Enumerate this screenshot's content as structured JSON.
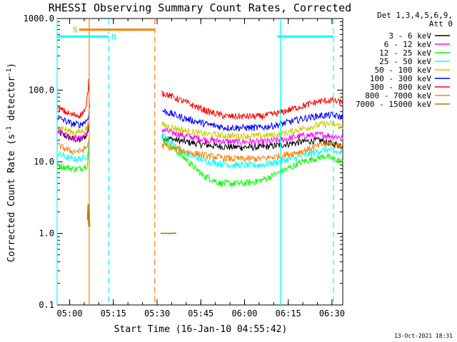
{
  "chart_data": {
    "type": "line",
    "title": "RHESSI Observing Summary Count Rates, Corrected",
    "xlabel": "Start Time (16-Jan-10 04:55:42)",
    "ylabel_parts": [
      "Corrected Count Rate (s",
      "-1",
      " detector",
      "-1",
      ")"
    ],
    "yscale": "log",
    "ylim": [
      0.1,
      1000
    ],
    "xlim_minutes_from_start": [
      0,
      98
    ],
    "y_ticks": [
      "0.1",
      "1.0",
      "10.0",
      "100.0",
      "1000.0"
    ],
    "x_ticks": [
      {
        "label": "05:00",
        "min": 4.3
      },
      {
        "label": "05:15",
        "min": 19.3
      },
      {
        "label": "05:30",
        "min": 34.3
      },
      {
        "label": "05:45",
        "min": 49.3
      },
      {
        "label": "06:00",
        "min": 64.3
      },
      {
        "label": "06:15",
        "min": 79.3
      },
      {
        "label": "06:30",
        "min": 94.3
      }
    ],
    "legend_header": [
      "Det 1,3,4,5,6,9,",
      "Att 0"
    ],
    "legend_position": "outside-right",
    "series": [
      {
        "name": "3 - 6 keV",
        "color": "#000000",
        "pre": [
          [
            0,
            26
          ],
          [
            5,
            21
          ],
          [
            8,
            20
          ],
          [
            10.3,
            24
          ],
          [
            11,
            34
          ]
        ],
        "post": [
          [
            36,
            22
          ],
          [
            44,
            19
          ],
          [
            52,
            17
          ],
          [
            60,
            16
          ],
          [
            70,
            16
          ],
          [
            76,
            17
          ],
          [
            84,
            19
          ],
          [
            90,
            20
          ],
          [
            94,
            18
          ],
          [
            98,
            17
          ]
        ]
      },
      {
        "name": "6 - 12 keV",
        "color": "#ff00ff",
        "pre": [
          [
            0,
            28
          ],
          [
            5,
            22
          ],
          [
            8,
            21
          ],
          [
            10.3,
            26
          ],
          [
            11,
            36
          ]
        ],
        "post": [
          [
            36,
            28
          ],
          [
            44,
            23
          ],
          [
            52,
            20
          ],
          [
            60,
            19
          ],
          [
            70,
            19
          ],
          [
            76,
            20
          ],
          [
            84,
            23
          ],
          [
            90,
            24
          ],
          [
            94,
            23
          ],
          [
            98,
            22
          ]
        ]
      },
      {
        "name": "12 - 25 keV",
        "color": "#00ff00",
        "pre": [
          [
            0,
            9
          ],
          [
            5,
            8
          ],
          [
            8,
            8
          ],
          [
            10.3,
            9
          ],
          [
            11,
            16
          ]
        ],
        "post": [
          [
            36,
            21
          ],
          [
            44,
            11
          ],
          [
            50,
            6.5
          ],
          [
            56,
            5
          ],
          [
            64,
            5
          ],
          [
            70,
            5.5
          ],
          [
            76,
            7
          ],
          [
            84,
            10
          ],
          [
            92,
            12
          ],
          [
            98,
            10
          ]
        ]
      },
      {
        "name": "25 - 50 keV",
        "color": "#00ffff",
        "pre": [
          [
            0,
            13
          ],
          [
            5,
            11
          ],
          [
            8,
            11
          ],
          [
            10.3,
            12
          ],
          [
            11,
            20
          ]
        ],
        "post": [
          [
            36,
            24
          ],
          [
            44,
            13
          ],
          [
            52,
            10
          ],
          [
            60,
            9
          ],
          [
            70,
            9
          ],
          [
            76,
            10
          ],
          [
            84,
            12
          ],
          [
            92,
            15
          ],
          [
            98,
            13
          ]
        ]
      },
      {
        "name": "50 - 100 keV",
        "color": "#cccc00",
        "pre": [
          [
            0,
            32
          ],
          [
            5,
            26
          ],
          [
            8,
            26
          ],
          [
            10.3,
            30
          ],
          [
            11,
            42
          ]
        ],
        "post": [
          [
            36,
            33
          ],
          [
            44,
            27
          ],
          [
            52,
            24
          ],
          [
            60,
            23
          ],
          [
            70,
            23
          ],
          [
            76,
            24
          ],
          [
            84,
            29
          ],
          [
            90,
            33
          ],
          [
            94,
            34
          ],
          [
            98,
            31
          ]
        ]
      },
      {
        "name": "100 - 300 keV",
        "color": "#0000ff",
        "pre": [
          [
            0,
            42
          ],
          [
            5,
            34
          ],
          [
            8,
            33
          ],
          [
            10.3,
            38
          ],
          [
            11,
            50
          ]
        ],
        "post": [
          [
            36,
            52
          ],
          [
            44,
            40
          ],
          [
            52,
            33
          ],
          [
            58,
            30
          ],
          [
            70,
            30
          ],
          [
            76,
            33
          ],
          [
            84,
            40
          ],
          [
            90,
            44
          ],
          [
            94,
            45
          ],
          [
            98,
            42
          ]
        ]
      },
      {
        "name": "300 - 800 keV",
        "color": "#ff0000",
        "pre": [
          [
            0,
            57
          ],
          [
            5,
            45
          ],
          [
            8,
            45
          ],
          [
            10,
            55
          ],
          [
            10.8,
            130
          ],
          [
            11.2,
            60
          ]
        ],
        "post": [
          [
            36,
            93
          ],
          [
            44,
            68
          ],
          [
            52,
            50
          ],
          [
            58,
            43
          ],
          [
            70,
            43
          ],
          [
            76,
            48
          ],
          [
            84,
            60
          ],
          [
            90,
            70
          ],
          [
            94,
            72
          ],
          [
            98,
            67
          ]
        ]
      },
      {
        "name": "800 - 7000 keV",
        "color": "#ff8000",
        "pre": [
          [
            0,
            17
          ],
          [
            5,
            14
          ],
          [
            8,
            14
          ],
          [
            10.3,
            16
          ],
          [
            11,
            22
          ]
        ],
        "post": [
          [
            36,
            17
          ],
          [
            44,
            14
          ],
          [
            52,
            12
          ],
          [
            60,
            11
          ],
          [
            70,
            11
          ],
          [
            76,
            12
          ],
          [
            84,
            14
          ],
          [
            90,
            17
          ],
          [
            94,
            18
          ],
          [
            98,
            16
          ]
        ]
      },
      {
        "name": "7000 - 15000 keV",
        "color": "#a08000",
        "pre": [
          [
            10.6,
            1.6
          ],
          [
            10.8,
            2.5
          ],
          [
            11,
            1.3
          ]
        ],
        "post": [
          [
            35.5,
            1.0
          ],
          [
            41,
            1.0
          ]
        ]
      }
    ],
    "annotations": {
      "s_label": "S",
      "n_label": "N",
      "s_bar": {
        "from_min": 7.5,
        "to_min": 33.5,
        "y": 700
      },
      "n_bars": [
        {
          "from_min": 0,
          "to_min": 17.7,
          "y": 560
        },
        {
          "from_min": 75.5,
          "to_min": 94.8,
          "y": 560
        }
      ],
      "vlines": [
        {
          "min": 0,
          "color": "#00ffff",
          "style": "solid"
        },
        {
          "min": 11,
          "color": "#ff8000",
          "style": "solid"
        },
        {
          "min": 17.7,
          "color": "#00ffff",
          "style": "dashed"
        },
        {
          "min": 33.5,
          "color": "#ff8000",
          "style": "dashed"
        },
        {
          "min": 76.6,
          "color": "#00ffff",
          "style": "solid"
        },
        {
          "min": 94.8,
          "color": "#00ffff",
          "style": "dashed"
        }
      ]
    },
    "footer_date": "13-Oct-2021 18:31",
    "grid": false
  }
}
